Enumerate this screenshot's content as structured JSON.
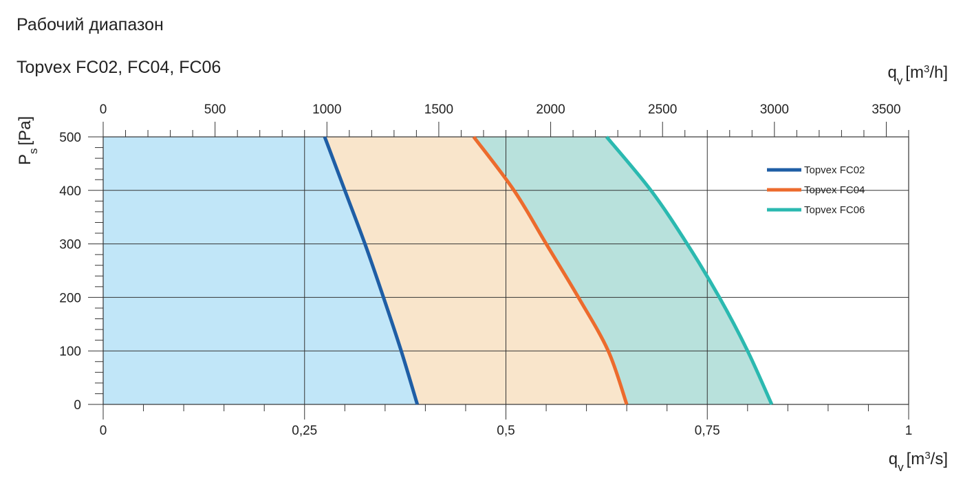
{
  "header": {
    "title": "Рабочий диапазон",
    "subtitle": "Topvex FC02, FC04, FC06"
  },
  "chart_data": {
    "type": "area",
    "title": "Рабочий диапазон",
    "subtitle": "Topvex FC02, FC04, FC06",
    "x_bottom": {
      "label_main": "q",
      "label_sub": "v",
      "label_unit": "[m",
      "label_sup": "3",
      "label_tail": "/s]",
      "range": [
        0,
        1
      ],
      "ticks": [
        0,
        0.25,
        0.5,
        0.75,
        1
      ],
      "tick_labels": [
        "0",
        "0,25",
        "0,5",
        "0,75",
        "1"
      ]
    },
    "x_top": {
      "label_main": "q",
      "label_sub": "v",
      "label_unit": "[m",
      "label_sup": "3",
      "label_tail": "/h]",
      "range": [
        0,
        3600
      ],
      "ticks": [
        0,
        500,
        1000,
        1500,
        2000,
        2500,
        3000,
        3500
      ],
      "tick_labels": [
        "0",
        "500",
        "1000",
        "1500",
        "2000",
        "2500",
        "3000",
        "3500"
      ]
    },
    "y": {
      "label_main": "P",
      "label_sub": "s",
      "label_unit": "[Pa]",
      "range": [
        0,
        500
      ],
      "ticks": [
        0,
        100,
        200,
        300,
        400,
        500
      ],
      "tick_labels": [
        "0",
        "100",
        "200",
        "300",
        "400",
        "500"
      ]
    },
    "grid": true,
    "legend_position": "top-right",
    "series": [
      {
        "name": "Topvex FC02",
        "color": "#1f5ea5",
        "fill": "#c1e6f8",
        "points": [
          [
            0.275,
            500
          ],
          [
            0.3,
            400
          ],
          [
            0.325,
            300
          ],
          [
            0.348,
            200
          ],
          [
            0.37,
            100
          ],
          [
            0.39,
            0
          ]
        ]
      },
      {
        "name": "Topvex FC04",
        "color": "#ec6b2d",
        "fill": "#f9e5cb",
        "points": [
          [
            0.46,
            500
          ],
          [
            0.51,
            400
          ],
          [
            0.55,
            300
          ],
          [
            0.59,
            200
          ],
          [
            0.627,
            100
          ],
          [
            0.65,
            0
          ]
        ]
      },
      {
        "name": "Topvex FC06",
        "color": "#2bb9b0",
        "fill": "#b8e1dc",
        "points": [
          [
            0.625,
            500
          ],
          [
            0.68,
            400
          ],
          [
            0.725,
            300
          ],
          [
            0.765,
            200
          ],
          [
            0.8,
            100
          ],
          [
            0.83,
            0
          ]
        ]
      }
    ]
  }
}
